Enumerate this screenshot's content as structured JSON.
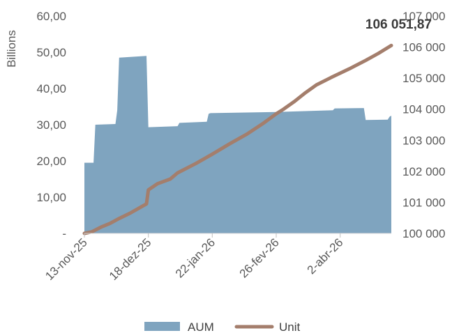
{
  "chart_data": {
    "type": "area+line",
    "title": "",
    "y_left_label": "Billions",
    "y_left_ticks": [
      "60,00",
      "50,00",
      "40,00",
      "30,00",
      "20,00",
      "10,00",
      "-"
    ],
    "y_left_range": [
      0,
      60
    ],
    "y_right_ticks": [
      "107 000",
      "106 000",
      "105 000",
      "104 000",
      "103 000",
      "102 000",
      "101 000",
      "100 000"
    ],
    "y_right_range": [
      100000,
      107000
    ],
    "x_ticks": [
      "13-nov-25",
      "18-dez-25",
      "22-jan-26",
      "26-fev-26",
      "2-abr-26"
    ],
    "x_range": [
      "2025-11-13",
      "2026-04-30"
    ],
    "grid": false,
    "legend_position": "bottom",
    "annotation": "106 051,87",
    "colors": {
      "AUM": "#7fa4bf",
      "Unit": "#a47e6c"
    },
    "series": [
      {
        "name": "AUM",
        "kind": "area",
        "axis": "left",
        "points": [
          [
            "2025-11-13",
            19.5
          ],
          [
            "2025-11-18",
            19.5
          ],
          [
            "2025-11-19",
            30.0
          ],
          [
            "2025-11-30",
            30.2
          ],
          [
            "2025-12-01",
            34.0
          ],
          [
            "2025-12-02",
            48.5
          ],
          [
            "2025-12-17",
            49.0
          ],
          [
            "2025-12-18",
            29.3
          ],
          [
            "2026-01-03",
            29.6
          ],
          [
            "2026-01-04",
            30.5
          ],
          [
            "2026-01-19",
            30.8
          ],
          [
            "2026-01-20",
            33.0
          ],
          [
            "2026-01-21",
            33.2
          ],
          [
            "2026-02-26",
            33.5
          ],
          [
            "2026-03-29",
            34.0
          ],
          [
            "2026-03-30",
            34.5
          ],
          [
            "2026-04-15",
            34.6
          ],
          [
            "2026-04-16",
            31.3
          ],
          [
            "2026-04-28",
            31.4
          ],
          [
            "2026-04-29",
            32.2
          ],
          [
            "2026-04-30",
            32.5
          ]
        ]
      },
      {
        "name": "Unit",
        "kind": "line",
        "axis": "right",
        "points": [
          [
            "2025-11-13",
            100000
          ],
          [
            "2025-11-17",
            100050
          ],
          [
            "2025-11-22",
            100200
          ],
          [
            "2025-11-27",
            100320
          ],
          [
            "2025-12-02",
            100480
          ],
          [
            "2025-12-08",
            100650
          ],
          [
            "2025-12-14",
            100850
          ],
          [
            "2025-12-17",
            100950
          ],
          [
            "2025-12-18",
            101400
          ],
          [
            "2025-12-23",
            101600
          ],
          [
            "2025-12-30",
            101750
          ],
          [
            "2026-01-03",
            101950
          ],
          [
            "2026-01-13",
            102250
          ],
          [
            "2026-01-22",
            102550
          ],
          [
            "2026-02-01",
            102900
          ],
          [
            "2026-02-10",
            103200
          ],
          [
            "2026-02-19",
            103550
          ],
          [
            "2026-02-26",
            103850
          ],
          [
            "2026-03-02",
            104000
          ],
          [
            "2026-03-08",
            104250
          ],
          [
            "2026-03-14",
            104530
          ],
          [
            "2026-03-20",
            104780
          ],
          [
            "2026-03-28",
            105020
          ],
          [
            "2026-04-07",
            105300
          ],
          [
            "2026-04-16",
            105570
          ],
          [
            "2026-04-23",
            105800
          ],
          [
            "2026-04-30",
            106050
          ]
        ]
      }
    ]
  }
}
